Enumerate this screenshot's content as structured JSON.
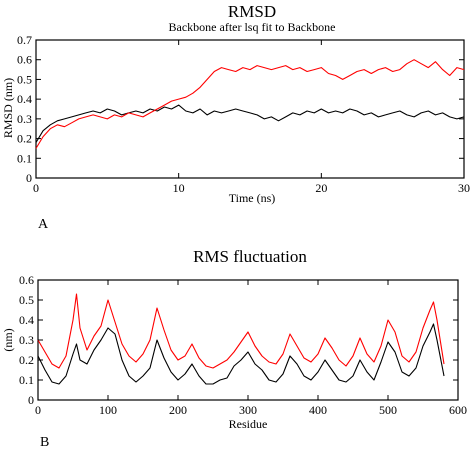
{
  "colors": {
    "series_a": "#000000",
    "series_b": "#ff0000",
    "axis": "#000000"
  },
  "chart_data": [
    {
      "type": "line",
      "panel_label": "A",
      "title": "RMSD",
      "subtitle": "Backbone after lsq fit to Backbone",
      "xlabel": "Time (ns)",
      "ylabel": "RMSD (nm)",
      "xlim": [
        0,
        30
      ],
      "ylim": [
        0,
        0.7
      ],
      "xticks": [
        0,
        10,
        20,
        30
      ],
      "xtick_labels": [
        "0",
        "10",
        "20",
        "30"
      ],
      "yticks": [
        0,
        0.1,
        0.2,
        0.3,
        0.4,
        0.5,
        0.6,
        0.7
      ],
      "ytick_labels": [
        "0",
        "0.1",
        "0.2",
        "0.3",
        "0.4",
        "0.5",
        "0.6",
        "0.7"
      ],
      "grid": false,
      "x": [
        0,
        0.5,
        1,
        1.5,
        2,
        2.5,
        3,
        3.5,
        4,
        4.5,
        5,
        5.5,
        6,
        6.5,
        7,
        7.5,
        8,
        8.5,
        9,
        9.5,
        10,
        10.5,
        11,
        11.5,
        12,
        12.5,
        13,
        13.5,
        14,
        14.5,
        15,
        15.5,
        16,
        16.5,
        17,
        17.5,
        18,
        18.5,
        19,
        19.5,
        20,
        20.5,
        21,
        21.5,
        22,
        22.5,
        23,
        23.5,
        24,
        24.5,
        25,
        25.5,
        26,
        26.5,
        27,
        27.5,
        28,
        28.5,
        29,
        29.5,
        30
      ],
      "series": [
        {
          "color": "#000000",
          "values": [
            0.18,
            0.24,
            0.27,
            0.29,
            0.3,
            0.31,
            0.32,
            0.33,
            0.34,
            0.33,
            0.35,
            0.34,
            0.32,
            0.33,
            0.34,
            0.33,
            0.35,
            0.34,
            0.36,
            0.35,
            0.37,
            0.34,
            0.33,
            0.35,
            0.32,
            0.34,
            0.33,
            0.34,
            0.35,
            0.34,
            0.33,
            0.32,
            0.3,
            0.31,
            0.29,
            0.31,
            0.33,
            0.32,
            0.34,
            0.33,
            0.35,
            0.33,
            0.34,
            0.33,
            0.35,
            0.34,
            0.32,
            0.33,
            0.31,
            0.32,
            0.33,
            0.34,
            0.32,
            0.31,
            0.33,
            0.34,
            0.32,
            0.33,
            0.31,
            0.3,
            0.31
          ]
        },
        {
          "color": "#ff0000",
          "values": [
            0.15,
            0.21,
            0.25,
            0.27,
            0.26,
            0.28,
            0.3,
            0.31,
            0.32,
            0.31,
            0.3,
            0.32,
            0.31,
            0.33,
            0.32,
            0.31,
            0.33,
            0.35,
            0.37,
            0.39,
            0.4,
            0.41,
            0.43,
            0.46,
            0.5,
            0.54,
            0.56,
            0.55,
            0.54,
            0.56,
            0.55,
            0.57,
            0.56,
            0.55,
            0.56,
            0.57,
            0.55,
            0.56,
            0.54,
            0.55,
            0.56,
            0.53,
            0.52,
            0.5,
            0.52,
            0.54,
            0.55,
            0.53,
            0.55,
            0.56,
            0.54,
            0.55,
            0.58,
            0.6,
            0.58,
            0.56,
            0.59,
            0.55,
            0.52,
            0.56,
            0.55
          ]
        }
      ]
    },
    {
      "type": "line",
      "panel_label": "B",
      "title": "RMS fluctuation",
      "xlabel": "Residue",
      "ylabel": "(nm)",
      "xlim": [
        0,
        600
      ],
      "ylim": [
        0,
        0.6
      ],
      "xticks": [
        0,
        100,
        200,
        300,
        400,
        500,
        600
      ],
      "xtick_labels": [
        "0",
        "100",
        "200",
        "300",
        "400",
        "500",
        "600"
      ],
      "yticks": [
        0,
        0.1,
        0.2,
        0.3,
        0.4,
        0.5,
        0.6
      ],
      "ytick_labels": [
        "0",
        "0.1",
        "0.2",
        "0.3",
        "0.4",
        "0.5",
        "0.6"
      ],
      "grid": false,
      "x": [
        0,
        10,
        20,
        30,
        40,
        50,
        55,
        60,
        70,
        80,
        90,
        100,
        110,
        120,
        130,
        140,
        150,
        160,
        170,
        180,
        190,
        200,
        210,
        220,
        230,
        240,
        250,
        260,
        270,
        280,
        290,
        300,
        310,
        320,
        330,
        340,
        350,
        360,
        370,
        380,
        390,
        400,
        410,
        420,
        430,
        440,
        450,
        460,
        470,
        480,
        490,
        500,
        510,
        520,
        530,
        540,
        550,
        560,
        565,
        570,
        580
      ],
      "series": [
        {
          "color": "#000000",
          "values": [
            0.22,
            0.15,
            0.09,
            0.08,
            0.12,
            0.23,
            0.28,
            0.2,
            0.18,
            0.25,
            0.3,
            0.36,
            0.33,
            0.2,
            0.12,
            0.09,
            0.12,
            0.16,
            0.3,
            0.21,
            0.14,
            0.1,
            0.13,
            0.18,
            0.12,
            0.08,
            0.08,
            0.1,
            0.11,
            0.17,
            0.2,
            0.24,
            0.18,
            0.15,
            0.1,
            0.09,
            0.13,
            0.22,
            0.18,
            0.12,
            0.1,
            0.14,
            0.2,
            0.15,
            0.1,
            0.09,
            0.12,
            0.2,
            0.14,
            0.1,
            0.19,
            0.29,
            0.24,
            0.14,
            0.12,
            0.16,
            0.27,
            0.34,
            0.38,
            0.3,
            0.12
          ]
        },
        {
          "color": "#ff0000",
          "values": [
            0.3,
            0.24,
            0.18,
            0.16,
            0.22,
            0.4,
            0.53,
            0.36,
            0.25,
            0.32,
            0.37,
            0.5,
            0.39,
            0.28,
            0.22,
            0.19,
            0.23,
            0.3,
            0.46,
            0.35,
            0.25,
            0.2,
            0.22,
            0.28,
            0.21,
            0.17,
            0.16,
            0.18,
            0.2,
            0.24,
            0.29,
            0.34,
            0.27,
            0.22,
            0.19,
            0.18,
            0.23,
            0.33,
            0.27,
            0.21,
            0.19,
            0.23,
            0.31,
            0.26,
            0.2,
            0.17,
            0.22,
            0.31,
            0.23,
            0.19,
            0.27,
            0.4,
            0.34,
            0.22,
            0.19,
            0.24,
            0.36,
            0.45,
            0.49,
            0.4,
            0.18
          ]
        }
      ]
    }
  ]
}
